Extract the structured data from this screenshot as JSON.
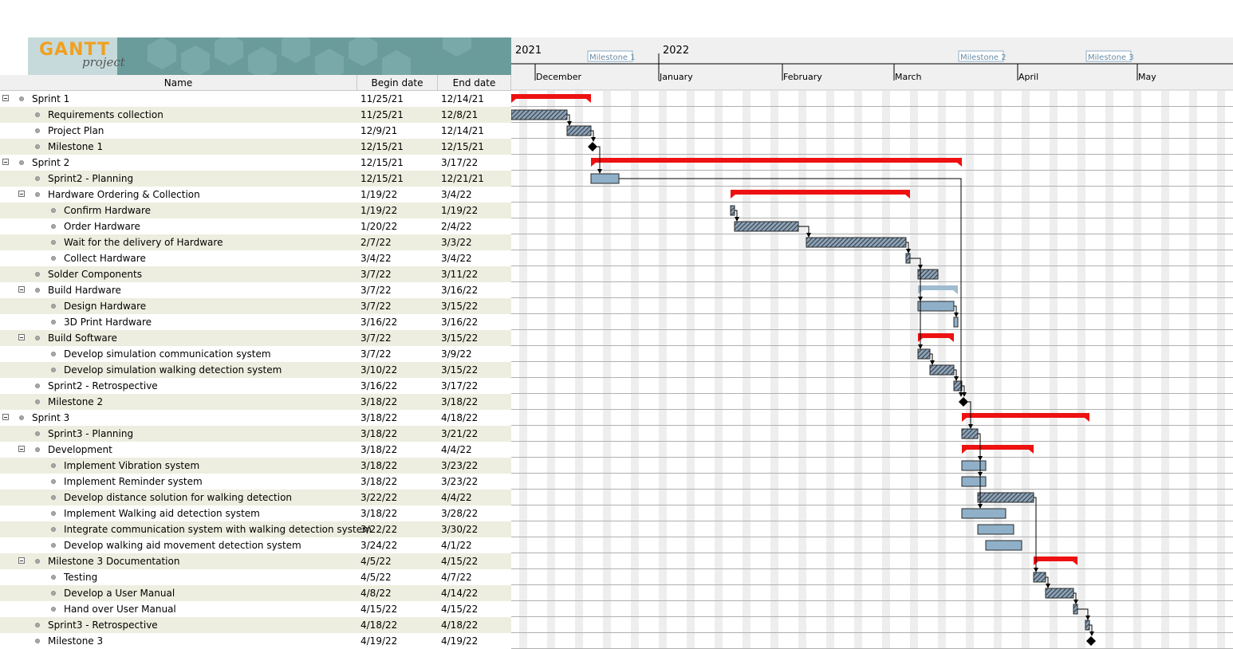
{
  "logo": {
    "gantt": "GANTT",
    "project": "project"
  },
  "columns": {
    "name": "Name",
    "begin": "Begin date",
    "end": "End date"
  },
  "timeline": {
    "years": [
      "2021",
      "2022"
    ],
    "months": [
      "December",
      "January",
      "February",
      "March",
      "April",
      "May"
    ],
    "milestones": [
      "Milestone 1",
      "Milestone 2",
      "Milestone 3"
    ]
  },
  "colors": {
    "summary": "#ee1111",
    "task_blue": "#8fb0c8",
    "task_hatched": "#2f3f4f",
    "row_alt": "#eeeee0",
    "logo_band": "#6b9c9c"
  },
  "tasks": [
    {
      "name": "Sprint 1",
      "begin": "11/25/21",
      "end": "12/14/21",
      "level": 0,
      "expandable": true
    },
    {
      "name": "Requirements collection",
      "begin": "11/25/21",
      "end": "12/8/21",
      "level": 1,
      "expandable": false
    },
    {
      "name": "Project Plan",
      "begin": "12/9/21",
      "end": "12/14/21",
      "level": 1,
      "expandable": false
    },
    {
      "name": "Milestone 1",
      "begin": "12/15/21",
      "end": "12/15/21",
      "level": 1,
      "expandable": false
    },
    {
      "name": "Sprint 2",
      "begin": "12/15/21",
      "end": "3/17/22",
      "level": 0,
      "expandable": true
    },
    {
      "name": "Sprint2 - Planning",
      "begin": "12/15/21",
      "end": "12/21/21",
      "level": 1,
      "expandable": false
    },
    {
      "name": "Hardware Ordering & Collection",
      "begin": "1/19/22",
      "end": "3/4/22",
      "level": 1,
      "expandable": true
    },
    {
      "name": "Confirm Hardware",
      "begin": "1/19/22",
      "end": "1/19/22",
      "level": 2,
      "expandable": false
    },
    {
      "name": "Order Hardware",
      "begin": "1/20/22",
      "end": "2/4/22",
      "level": 2,
      "expandable": false
    },
    {
      "name": "Wait for the delivery of Hardware",
      "begin": "2/7/22",
      "end": "3/3/22",
      "level": 2,
      "expandable": false
    },
    {
      "name": "Collect Hardware",
      "begin": "3/4/22",
      "end": "3/4/22",
      "level": 2,
      "expandable": false
    },
    {
      "name": "Solder Components",
      "begin": "3/7/22",
      "end": "3/11/22",
      "level": 1,
      "expandable": false
    },
    {
      "name": "Build Hardware",
      "begin": "3/7/22",
      "end": "3/16/22",
      "level": 1,
      "expandable": true
    },
    {
      "name": "Design Hardware",
      "begin": "3/7/22",
      "end": "3/15/22",
      "level": 2,
      "expandable": false
    },
    {
      "name": "3D Print Hardware",
      "begin": "3/16/22",
      "end": "3/16/22",
      "level": 2,
      "expandable": false
    },
    {
      "name": "Build Software",
      "begin": "3/7/22",
      "end": "3/15/22",
      "level": 1,
      "expandable": true
    },
    {
      "name": "Develop simulation communication system",
      "begin": "3/7/22",
      "end": "3/9/22",
      "level": 2,
      "expandable": false
    },
    {
      "name": "Develop simulation walking detection system",
      "begin": "3/10/22",
      "end": "3/15/22",
      "level": 2,
      "expandable": false
    },
    {
      "name": "Sprint2 - Retrospective",
      "begin": "3/16/22",
      "end": "3/17/22",
      "level": 1,
      "expandable": false
    },
    {
      "name": "Milestone 2",
      "begin": "3/18/22",
      "end": "3/18/22",
      "level": 1,
      "expandable": false
    },
    {
      "name": "Sprint 3",
      "begin": "3/18/22",
      "end": "4/18/22",
      "level": 0,
      "expandable": true
    },
    {
      "name": "Sprint3 - Planning",
      "begin": "3/18/22",
      "end": "3/21/22",
      "level": 1,
      "expandable": false
    },
    {
      "name": "Development",
      "begin": "3/18/22",
      "end": "4/4/22",
      "level": 1,
      "expandable": true
    },
    {
      "name": "Implement Vibration system",
      "begin": "3/18/22",
      "end": "3/23/22",
      "level": 2,
      "expandable": false
    },
    {
      "name": "Implement Reminder system",
      "begin": "3/18/22",
      "end": "3/23/22",
      "level": 2,
      "expandable": false
    },
    {
      "name": "Develop distance solution for walking detection",
      "begin": "3/22/22",
      "end": "4/4/22",
      "level": 2,
      "expandable": false
    },
    {
      "name": "Implement Walking aid detection system",
      "begin": "3/18/22",
      "end": "3/28/22",
      "level": 2,
      "expandable": false
    },
    {
      "name": "Integrate communication system with walking detection system",
      "begin": "3/22/22",
      "end": "3/30/22",
      "level": 2,
      "expandable": false
    },
    {
      "name": "Develop walking aid movement detection system",
      "begin": "3/24/22",
      "end": "4/1/22",
      "level": 2,
      "expandable": false
    },
    {
      "name": "Milestone 3 Documentation",
      "begin": "4/5/22",
      "end": "4/15/22",
      "level": 1,
      "expandable": true
    },
    {
      "name": "Testing",
      "begin": "4/5/22",
      "end": "4/7/22",
      "level": 2,
      "expandable": false
    },
    {
      "name": "Develop a User Manual",
      "begin": "4/8/22",
      "end": "4/14/22",
      "level": 2,
      "expandable": false
    },
    {
      "name": "Hand over User Manual",
      "begin": "4/15/22",
      "end": "4/15/22",
      "level": 2,
      "expandable": false
    },
    {
      "name": "Sprint3 - Retrospective",
      "begin": "4/18/22",
      "end": "4/18/22",
      "level": 1,
      "expandable": false
    },
    {
      "name": "Milestone 3",
      "begin": "4/19/22",
      "end": "4/19/22",
      "level": 1,
      "expandable": false
    }
  ],
  "chart_bars": [
    {
      "task": 0,
      "kind": "summary"
    },
    {
      "task": 1,
      "kind": "hatched"
    },
    {
      "task": 2,
      "kind": "hatched"
    },
    {
      "task": 3,
      "kind": "milestone"
    },
    {
      "task": 4,
      "kind": "summary"
    },
    {
      "task": 5,
      "kind": "blue"
    },
    {
      "task": 6,
      "kind": "summary"
    },
    {
      "task": 7,
      "kind": "hatched"
    },
    {
      "task": 8,
      "kind": "hatched"
    },
    {
      "task": 9,
      "kind": "hatched"
    },
    {
      "task": 10,
      "kind": "hatched"
    },
    {
      "task": 11,
      "kind": "hatched"
    },
    {
      "task": 12,
      "kind": "summary-light"
    },
    {
      "task": 13,
      "kind": "blue"
    },
    {
      "task": 14,
      "kind": "blue"
    },
    {
      "task": 15,
      "kind": "summary"
    },
    {
      "task": 16,
      "kind": "hatched"
    },
    {
      "task": 17,
      "kind": "hatched"
    },
    {
      "task": 18,
      "kind": "hatched"
    },
    {
      "task": 19,
      "kind": "milestone"
    },
    {
      "task": 20,
      "kind": "summary"
    },
    {
      "task": 21,
      "kind": "hatched"
    },
    {
      "task": 22,
      "kind": "summary"
    },
    {
      "task": 23,
      "kind": "blue"
    },
    {
      "task": 24,
      "kind": "blue"
    },
    {
      "task": 25,
      "kind": "hatched"
    },
    {
      "task": 26,
      "kind": "blue"
    },
    {
      "task": 27,
      "kind": "blue"
    },
    {
      "task": 28,
      "kind": "blue"
    },
    {
      "task": 29,
      "kind": "summary"
    },
    {
      "task": 30,
      "kind": "hatched"
    },
    {
      "task": 31,
      "kind": "hatched"
    },
    {
      "task": 32,
      "kind": "hatched"
    },
    {
      "task": 33,
      "kind": "hatched"
    },
    {
      "task": 34,
      "kind": "milestone"
    }
  ],
  "dependencies": [
    [
      1,
      2
    ],
    [
      2,
      3
    ],
    [
      3,
      5
    ],
    [
      5,
      19
    ],
    [
      7,
      8
    ],
    [
      8,
      9
    ],
    [
      9,
      10
    ],
    [
      10,
      11
    ],
    [
      10,
      13
    ],
    [
      10,
      16
    ],
    [
      13,
      14
    ],
    [
      16,
      17
    ],
    [
      17,
      18
    ],
    [
      18,
      19
    ],
    [
      19,
      21
    ],
    [
      21,
      23
    ],
    [
      21,
      24
    ],
    [
      21,
      26
    ],
    [
      25,
      30
    ],
    [
      30,
      31
    ],
    [
      31,
      32
    ],
    [
      32,
      33
    ],
    [
      33,
      34
    ]
  ]
}
